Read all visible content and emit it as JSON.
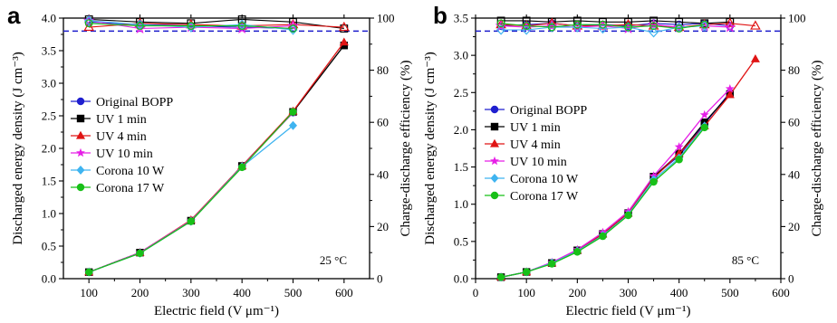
{
  "colors": {
    "original": "#1f1fcf",
    "uv1": "#000000",
    "uv4": "#e01414",
    "uv10": "#e61ee6",
    "corona10": "#3fb4f0",
    "corona17": "#18c018",
    "reference": "#1c1ccc"
  },
  "chart_data": [
    {
      "type": "line",
      "panel_label": "a",
      "annotation": "25 °C",
      "xlabel": "Electric field (V μm⁻¹)",
      "ylabel": "Discharged energy density (J cm⁻³)",
      "y2label": "Charge-discharge efficiency (%)",
      "xlim": [
        50,
        650
      ],
      "ylim": [
        0,
        4.0
      ],
      "y2lim": [
        0,
        100
      ],
      "xticks": [
        100,
        200,
        300,
        400,
        500,
        600
      ],
      "xtick_labels": [
        "100",
        "200",
        "300",
        "400",
        "500",
        "600"
      ],
      "yticks": [
        0,
        0.5,
        1.0,
        1.5,
        2.0,
        2.5,
        3.0,
        3.5,
        4.0
      ],
      "ytick_labels": [
        "0.0",
        "0.5",
        "1.0",
        "1.5",
        "2.0",
        "2.5",
        "3.0",
        "3.5",
        "4.0"
      ],
      "y2ticks": [
        0,
        20,
        40,
        60,
        80,
        100
      ],
      "y2tick_labels": [
        "0",
        "20",
        "40",
        "60",
        "80",
        "100"
      ],
      "reference_efficiency": 95,
      "legend": [
        "Original BOPP",
        "UV 1 min",
        "UV 4 min",
        "UV 10 min",
        "Corona 10 W",
        "Corona 17 W"
      ],
      "legend_position": "left",
      "series": [
        {
          "key": "original",
          "name": "Original BOPP",
          "marker": "circle",
          "x": [
            100,
            200,
            300,
            400,
            500
          ],
          "y": [
            0.1,
            0.4,
            0.89,
            1.73,
            2.55
          ],
          "efficiency": [
            98.5,
            97.5,
            97.0,
            96.5,
            96.0
          ]
        },
        {
          "key": "uv1",
          "name": "UV 1 min",
          "marker": "square",
          "x": [
            100,
            200,
            300,
            400,
            500,
            600
          ],
          "y": [
            0.1,
            0.4,
            0.89,
            1.73,
            2.56,
            3.58
          ],
          "efficiency": [
            99.5,
            98.5,
            98.0,
            99.5,
            98.5,
            96.0
          ]
        },
        {
          "key": "uv4",
          "name": "UV 4 min",
          "marker": "triangle",
          "x": [
            100,
            200,
            300,
            400,
            500,
            600
          ],
          "y": [
            0.1,
            0.4,
            0.9,
            1.73,
            2.57,
            3.63
          ],
          "efficiency": [
            96.5,
            98.0,
            97.5,
            97.0,
            97.5,
            96.5
          ]
        },
        {
          "key": "uv10",
          "name": "UV 10 min",
          "marker": "star",
          "x": [
            100,
            200,
            300,
            400,
            500
          ],
          "y": [
            0.1,
            0.4,
            0.89,
            1.72,
            2.55
          ],
          "efficiency": [
            99.0,
            96.0,
            96.5,
            96.0,
            97.0
          ]
        },
        {
          "key": "corona10",
          "name": "Corona 10 W",
          "marker": "diamond",
          "x": [
            100,
            200,
            300,
            400,
            500
          ],
          "y": [
            0.1,
            0.39,
            0.88,
            1.72,
            2.35
          ],
          "efficiency": [
            99.0,
            97.5,
            96.5,
            97.5,
            95.5
          ]
        },
        {
          "key": "corona17",
          "name": "Corona 17 W",
          "marker": "circle",
          "x": [
            100,
            200,
            300,
            400,
            500
          ],
          "y": [
            0.1,
            0.39,
            0.88,
            1.71,
            2.56
          ],
          "efficiency": [
            98.0,
            97.0,
            97.0,
            97.0,
            96.0
          ]
        }
      ]
    },
    {
      "type": "line",
      "panel_label": "b",
      "annotation": "85 °C",
      "xlabel": "Electric field (V μm⁻¹)",
      "ylabel": "Discharged energy density (J cm⁻³)",
      "y2label": "Charge-discharge efficiency (%)",
      "xlim": [
        0,
        600
      ],
      "ylim": [
        0,
        3.5
      ],
      "y2lim": [
        0,
        100
      ],
      "xticks": [
        0,
        100,
        200,
        300,
        400,
        500,
        600
      ],
      "xtick_labels": [
        "0",
        "100",
        "200",
        "300",
        "400",
        "500",
        "600"
      ],
      "yticks": [
        0,
        0.5,
        1.0,
        1.5,
        2.0,
        2.5,
        3.0,
        3.5
      ],
      "ytick_labels": [
        "0.0",
        "0.5",
        "1.0",
        "1.5",
        "2.0",
        "2.5",
        "3.0",
        "3.5"
      ],
      "y2ticks": [
        0,
        20,
        40,
        60,
        80,
        100
      ],
      "y2tick_labels": [
        "0",
        "20",
        "40",
        "60",
        "80",
        "100"
      ],
      "reference_efficiency": 95,
      "legend": [
        "Original BOPP",
        "UV 1 min",
        "UV 4 min",
        "UV 10 min",
        "Corona 10 W",
        "Corona 17 W"
      ],
      "legend_position": "left",
      "series": [
        {
          "key": "original",
          "name": "Original BOPP",
          "marker": "circle",
          "x": [
            50,
            100,
            150,
            200,
            250,
            300,
            350,
            400,
            450,
            500
          ],
          "y": [
            0.02,
            0.09,
            0.21,
            0.38,
            0.6,
            0.88,
            1.37,
            1.65,
            2.08,
            2.5
          ],
          "efficiency": [
            97.0,
            97.5,
            98.0,
            97.0,
            97.5,
            97.0,
            98.0,
            97.5,
            98.0,
            97.0
          ]
        },
        {
          "key": "uv1",
          "name": "UV 1 min",
          "marker": "square",
          "x": [
            50,
            100,
            150,
            200,
            250,
            300,
            350,
            400,
            450,
            500
          ],
          "y": [
            0.02,
            0.09,
            0.21,
            0.38,
            0.6,
            0.88,
            1.37,
            1.68,
            2.1,
            2.48
          ],
          "efficiency": [
            99.0,
            99.0,
            98.5,
            99.0,
            98.5,
            98.5,
            99.0,
            98.5,
            98.0,
            98.5
          ]
        },
        {
          "key": "uv4",
          "name": "UV 4 min",
          "marker": "triangle",
          "x": [
            50,
            100,
            150,
            200,
            250,
            300,
            350,
            400,
            450,
            500,
            550
          ],
          "y": [
            0.02,
            0.09,
            0.21,
            0.38,
            0.6,
            0.88,
            1.35,
            1.68,
            2.05,
            2.47,
            2.95
          ],
          "efficiency": [
            97.5,
            97.0,
            98.0,
            97.0,
            97.0,
            97.5,
            97.0,
            96.5,
            97.5,
            98.0,
            97.0
          ]
        },
        {
          "key": "uv10",
          "name": "UV 10 min",
          "marker": "star",
          "x": [
            50,
            100,
            150,
            200,
            250,
            300,
            350,
            400,
            450,
            500
          ],
          "y": [
            0.02,
            0.09,
            0.22,
            0.39,
            0.62,
            0.9,
            1.38,
            1.77,
            2.2,
            2.55
          ],
          "efficiency": [
            97.0,
            96.5,
            97.0,
            96.5,
            97.0,
            96.0,
            97.5,
            96.5,
            97.0,
            96.5
          ]
        },
        {
          "key": "corona10",
          "name": "Corona 10 W",
          "marker": "diamond",
          "x": [
            50,
            100,
            150,
            200,
            250,
            300,
            350,
            400,
            450
          ],
          "y": [
            0.02,
            0.09,
            0.21,
            0.37,
            0.58,
            0.86,
            1.33,
            1.62,
            2.05
          ],
          "efficiency": [
            95.5,
            95.5,
            96.5,
            96.5,
            96.0,
            96.5,
            94.5,
            96.5,
            97.0
          ]
        },
        {
          "key": "corona17",
          "name": "Corona 17 W",
          "marker": "circle",
          "x": [
            50,
            100,
            150,
            200,
            250,
            300,
            350,
            400,
            450
          ],
          "y": [
            0.02,
            0.09,
            0.2,
            0.36,
            0.57,
            0.85,
            1.3,
            1.6,
            2.03
          ],
          "efficiency": [
            98.0,
            97.0,
            96.5,
            97.5,
            97.5,
            96.5,
            97.0,
            96.0,
            97.5
          ]
        }
      ]
    }
  ]
}
